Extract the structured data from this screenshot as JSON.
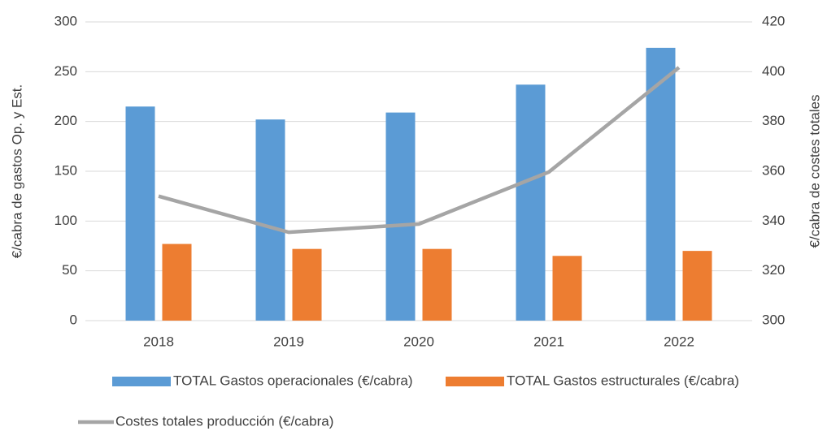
{
  "chart_data": {
    "type": "bar_line",
    "categories": [
      "2018",
      "2019",
      "2020",
      "2021",
      "2022"
    ],
    "ylabel": "€/cabra de gastos Op. y Est.",
    "y2label": "€/cabra de costes totales",
    "ylim": [
      0,
      300
    ],
    "yticks": [
      0,
      50,
      100,
      150,
      200,
      250,
      300
    ],
    "y2lim": [
      300,
      420
    ],
    "y2ticks": [
      300,
      320,
      340,
      360,
      380,
      400,
      420
    ],
    "grid": true,
    "legend": "bottom",
    "series": [
      {
        "name": "TOTAL Gastos operacionales (€/cabra)",
        "color": "#5b9bd5",
        "type": "bar",
        "values": [
          215,
          202,
          209,
          237,
          274
        ]
      },
      {
        "name": "TOTAL Gastos estructurales (€/cabra)",
        "color": "#ed7d31",
        "type": "bar",
        "values": [
          77,
          72,
          72,
          65,
          70
        ]
      },
      {
        "name": "Costes totales producción (€/cabra)",
        "color": "#a5a5a5",
        "type": "line",
        "axis": "y2",
        "values": [
          350,
          335.5,
          338.8,
          359.7,
          401.7
        ]
      }
    ]
  }
}
